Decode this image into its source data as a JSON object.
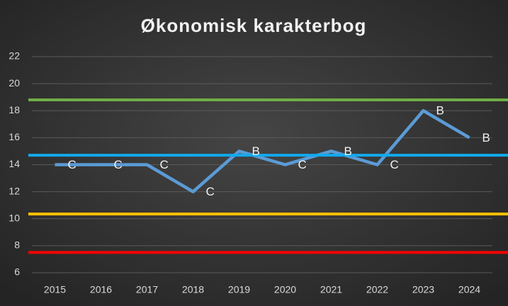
{
  "chart_data": {
    "type": "line",
    "title": "Økonomisk karakterbog",
    "categories": [
      "2015",
      "2016",
      "2017",
      "2018",
      "2019",
      "2020",
      "2021",
      "2022",
      "2023",
      "2024"
    ],
    "series": [
      {
        "color": "#5b9bd5",
        "values": [
          14,
          14,
          14,
          12,
          15,
          14,
          15,
          14,
          18,
          16
        ],
        "value_labels": [
          "C",
          "C",
          "C",
          "C",
          "B",
          "C",
          "B",
          "C",
          "B",
          "B"
        ]
      }
    ],
    "reference_lines": [
      {
        "value": 18.8,
        "color": "#70ad47"
      },
      {
        "value": 14.7,
        "color": "#12a9ec"
      },
      {
        "value": 10.35,
        "color": "#ffc000"
      },
      {
        "value": 7.5,
        "color": "#ff0000"
      }
    ],
    "ylim": [
      6,
      22
    ],
    "yticks": [
      6,
      8,
      10,
      12,
      14,
      16,
      18,
      20,
      22
    ],
    "grid": true
  }
}
